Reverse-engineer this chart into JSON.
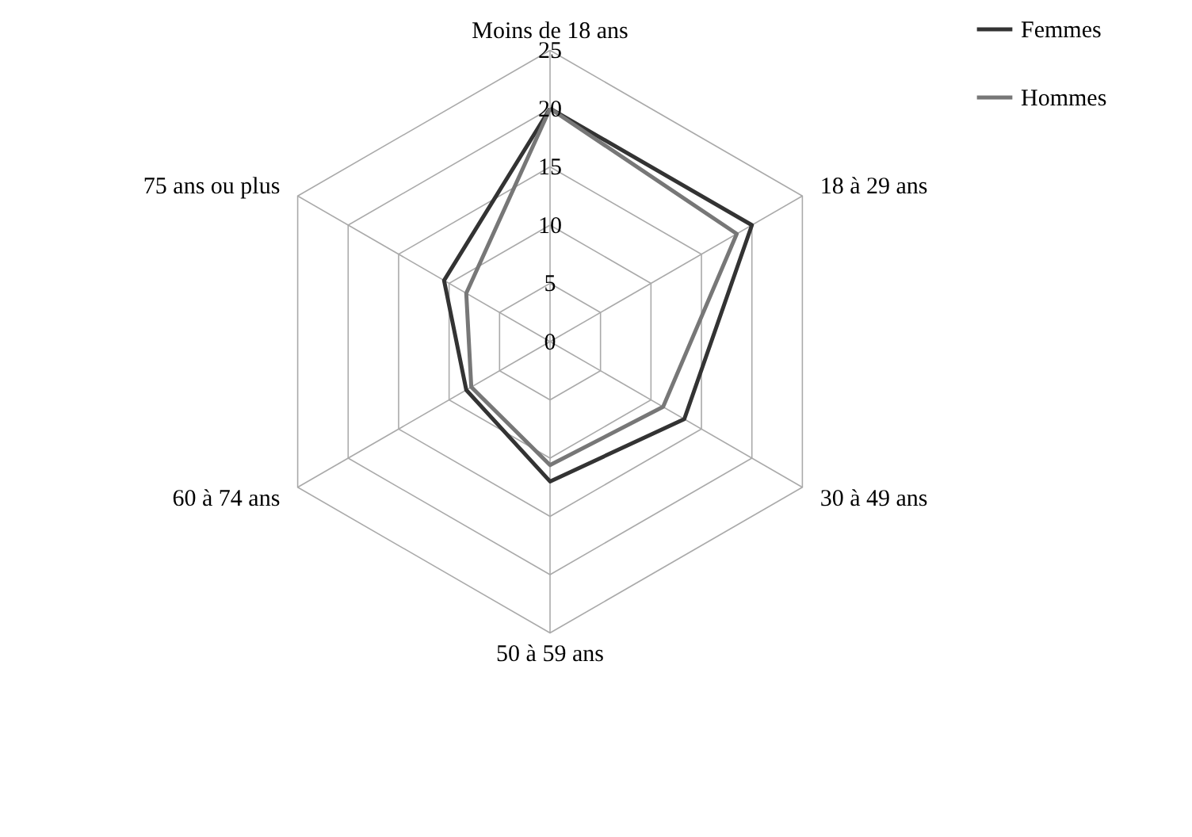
{
  "chart_data": {
    "type": "radar",
    "categories": [
      "Moins de 18 ans",
      "18 à 29 ans",
      "30 à 49 ans",
      "50 à 59 ans",
      "60 à 74 ans",
      "75 ans ou plus"
    ],
    "series": [
      {
        "name": "Femmes",
        "color": "#333333",
        "values": [
          20,
          20,
          13.3,
          12,
          8.3,
          10.5
        ]
      },
      {
        "name": "Hommes",
        "color": "#777777",
        "values": [
          20,
          18.5,
          11.2,
          10.6,
          7.8,
          8.3
        ]
      }
    ],
    "ylim": [
      0,
      25
    ],
    "yticks": [
      0,
      5,
      10,
      15,
      20,
      25
    ],
    "grid": true,
    "legend": "right"
  }
}
